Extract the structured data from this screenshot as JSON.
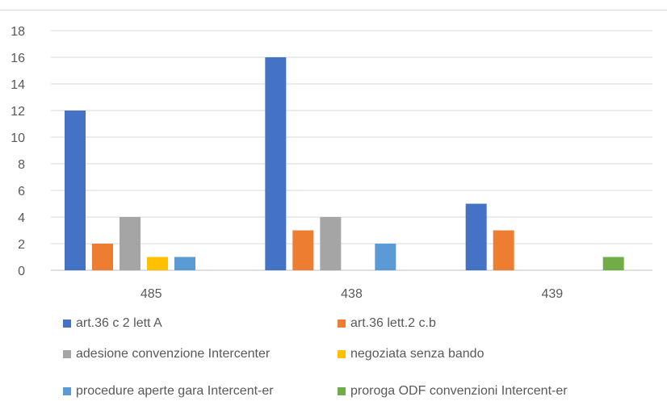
{
  "chart_data": {
    "type": "bar",
    "title": "",
    "xlabel": "",
    "ylabel": "",
    "categories": [
      "485",
      "438",
      "439"
    ],
    "ylim": [
      0,
      18
    ],
    "yticks": [
      0,
      2,
      4,
      6,
      8,
      10,
      12,
      14,
      16,
      18
    ],
    "grid": true,
    "legend_position": "bottom",
    "series": [
      {
        "name": "art.36 c 2 lett A",
        "color": "#4472C4",
        "values": [
          12,
          16,
          5
        ]
      },
      {
        "name": "art.36 lett.2 c.b",
        "color": "#ED7D31",
        "values": [
          2,
          3,
          3
        ]
      },
      {
        "name": "adesione convenzione Intercenter",
        "color": "#A5A5A5",
        "values": [
          4,
          4,
          0
        ]
      },
      {
        "name": "negoziata senza bando",
        "color": "#FFC000",
        "values": [
          1,
          0,
          0
        ]
      },
      {
        "name": "procedure aperte gara Intercent-er",
        "color": "#5B9BD5",
        "values": [
          1,
          2,
          0
        ]
      },
      {
        "name": "proroga ODF convenzioni Intercent-er",
        "color": "#70AD47",
        "values": [
          0,
          0,
          1
        ]
      }
    ]
  }
}
